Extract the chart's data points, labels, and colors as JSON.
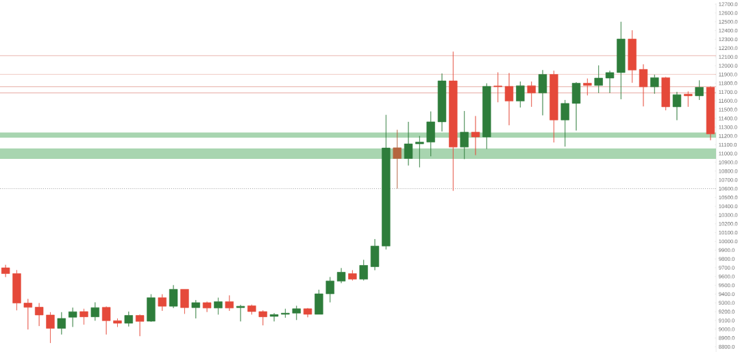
{
  "chart_data": {
    "type": "candlestick",
    "categories": [
      null,
      null,
      null,
      null,
      null,
      null,
      null,
      null,
      null,
      null,
      null,
      null,
      null,
      null,
      null,
      null,
      null,
      null,
      null,
      null,
      null,
      null,
      null,
      null,
      null,
      null,
      null,
      null,
      null,
      null,
      null,
      null,
      null,
      null,
      null,
      null,
      null,
      null,
      null,
      null,
      null,
      null,
      null,
      null,
      null,
      null,
      null,
      null,
      null,
      null,
      null,
      null,
      null,
      null,
      null,
      null,
      null,
      null,
      null,
      null,
      null,
      null,
      null,
      null
    ],
    "ohlc": [
      [
        9699,
        9733,
        9594,
        9633
      ],
      [
        9633,
        9673,
        9215,
        9298
      ],
      [
        9298,
        9345,
        8997,
        9249
      ],
      [
        9251,
        9298,
        9036,
        9162
      ],
      [
        9162,
        9194,
        8843,
        9010
      ],
      [
        9010,
        9194,
        8940,
        9123
      ],
      [
        9136,
        9246,
        9026,
        9199
      ],
      [
        9201,
        9233,
        9052,
        9141
      ],
      [
        9141,
        9306,
        9097,
        9246
      ],
      [
        9249,
        9259,
        8940,
        9097
      ],
      [
        9097,
        9123,
        9026,
        9068
      ],
      [
        9068,
        9201,
        9031,
        9157
      ],
      [
        9157,
        9167,
        8921,
        9089
      ],
      [
        9091,
        9398,
        9084,
        9359
      ],
      [
        9359,
        9398,
        9209,
        9262
      ],
      [
        9262,
        9502,
        9241,
        9455
      ],
      [
        9455,
        9455,
        9175,
        9246
      ],
      [
        9246,
        9332,
        9123,
        9303
      ],
      [
        9303,
        9314,
        9196,
        9241
      ],
      [
        9241,
        9359,
        9167,
        9314
      ],
      [
        9314,
        9385,
        9209,
        9241
      ],
      [
        9246,
        9277,
        9089,
        9262
      ],
      [
        9267,
        9280,
        9167,
        9201
      ],
      [
        9201,
        9215,
        9044,
        9141
      ],
      [
        9146,
        9183,
        9089,
        9167
      ],
      [
        9170,
        9233,
        9131,
        9183
      ],
      [
        9183,
        9267,
        9105,
        9233
      ],
      [
        9233,
        9241,
        9136,
        9170
      ],
      [
        9170,
        9450,
        9170,
        9403
      ],
      [
        9403,
        9594,
        9306,
        9550
      ],
      [
        9547,
        9696,
        9525,
        9649
      ],
      [
        9633,
        9672,
        9555,
        9570
      ],
      [
        9570,
        9790,
        9555,
        9727
      ],
      [
        9712,
        10026,
        9672,
        9947
      ],
      [
        9947,
        11440,
        9908,
        11063
      ],
      [
        11065,
        11270,
        10602,
        10943
      ],
      [
        10943,
        11361,
        10864,
        11110
      ],
      [
        11110,
        11199,
        10843,
        11131
      ],
      [
        11131,
        11479,
        10969,
        11361
      ],
      [
        11361,
        11911,
        11251,
        11827
      ],
      [
        11827,
        12160,
        10576,
        11073
      ],
      [
        11073,
        11484,
        10937,
        11244
      ],
      [
        11244,
        11427,
        10982,
        11189
      ],
      [
        11189,
        11799,
        11052,
        11765
      ],
      [
        11770,
        11924,
        11584,
        11760
      ],
      [
        11765,
        11916,
        11322,
        11597
      ],
      [
        11597,
        11820,
        11524,
        11772
      ],
      [
        11772,
        11820,
        11532,
        11689
      ],
      [
        11689,
        11950,
        11435,
        11901
      ],
      [
        11901,
        11943,
        11126,
        11382
      ],
      [
        11382,
        11610,
        11079,
        11571
      ],
      [
        11571,
        11812,
        11262,
        11801
      ],
      [
        11801,
        11854,
        11662,
        11775
      ],
      [
        11775,
        12003,
        11689,
        11859
      ],
      [
        11859,
        11943,
        11689,
        11922
      ],
      [
        11922,
        12500,
        11618,
        12304
      ],
      [
        12304,
        12403,
        11806,
        11950
      ],
      [
        11958,
        12016,
        11537,
        11759
      ],
      [
        11759,
        11898,
        11681,
        11864
      ],
      [
        11864,
        11872,
        11492,
        11532
      ],
      [
        11532,
        11702,
        11380,
        11670
      ],
      [
        11675,
        11707,
        11532,
        11657
      ],
      [
        11657,
        11833,
        11610,
        11754
      ],
      [
        11754,
        11765,
        11152,
        11223
      ]
    ],
    "colors": [
      "#e5493a",
      "#e5493a",
      "#e5493a",
      "#e5493a",
      "#e5493a",
      "#2e7d3b",
      "#2e7d3b",
      "#e5493a",
      "#2e7d3b",
      "#e5493a",
      "#e5493a",
      "#2e7d3b",
      "#e5493a",
      "#2e7d3b",
      "#e5493a",
      "#2e7d3b",
      "#e5493a",
      "#2e7d3b",
      "#e5493a",
      "#2e7d3b",
      "#e5493a",
      "#2e7d3b",
      "#e5493a",
      "#e5493a",
      "#2e7d3b",
      "#2e7d3b",
      "#2e7d3b",
      "#e5493a",
      "#2e7d3b",
      "#2e7d3b",
      "#2e7d3b",
      "#e5493a",
      "#2e7d3b",
      "#2e7d3b",
      "#2e7d3b",
      "#b5653f",
      "#2e7d3b",
      "#2e7d3b",
      "#2e7d3b",
      "#2e7d3b",
      "#e5493a",
      "#2e7d3b",
      "#e5493a",
      "#2e7d3b",
      "#e5493a",
      "#e5493a",
      "#2e7d3b",
      "#e5493a",
      "#2e7d3b",
      "#e5493a",
      "#2e7d3b",
      "#2e7d3b",
      "#e5493a",
      "#2e7d3b",
      "#2e7d3b",
      "#2e7d3b",
      "#e5493a",
      "#e5493a",
      "#2e7d3b",
      "#e5493a",
      "#2e7d3b",
      "#e5493a",
      "#2e7d3b",
      "#e5493a"
    ],
    "ylim": [
      8740,
      12710
    ],
    "yticks": [
      {
        "value": 8800,
        "label": "8800.0"
      },
      {
        "value": 8900,
        "label": "8900.0"
      },
      {
        "value": 9000,
        "label": "9000.0"
      },
      {
        "value": 9100,
        "label": "9100.0"
      },
      {
        "value": 9200,
        "label": "9200.0"
      },
      {
        "value": 9300,
        "label": "9300.0"
      },
      {
        "value": 9400,
        "label": "9400.0"
      },
      {
        "value": 9500,
        "label": "9500.0"
      },
      {
        "value": 9600,
        "label": "9600.0"
      },
      {
        "value": 9700,
        "label": "9700.0"
      },
      {
        "value": 9800,
        "label": "9800.0"
      },
      {
        "value": 9900,
        "label": "9900.0"
      },
      {
        "value": 10000,
        "label": "10000.0"
      },
      {
        "value": 10100,
        "label": "10100.0"
      },
      {
        "value": 10200,
        "label": "10200.0"
      },
      {
        "value": 10300,
        "label": "10300.0"
      },
      {
        "value": 10400,
        "label": "10400.0"
      },
      {
        "value": 10500,
        "label": "10500.0"
      },
      {
        "value": 10600,
        "label": "10600.0"
      },
      {
        "value": 10700,
        "label": "10700.0"
      },
      {
        "value": 10800,
        "label": "10800.0"
      },
      {
        "value": 10900,
        "label": "10900.0"
      },
      {
        "value": 11000,
        "label": "11000.0"
      },
      {
        "value": 11100,
        "label": "11100.0"
      },
      {
        "value": 11200,
        "label": "11200.0"
      },
      {
        "value": 11300,
        "label": "11300.0"
      },
      {
        "value": 11400,
        "label": "11400.0"
      },
      {
        "value": 11500,
        "label": "11500.0"
      },
      {
        "value": 11600,
        "label": "11600.0"
      },
      {
        "value": 11700,
        "label": "11700.0"
      },
      {
        "value": 11800,
        "label": "11800.0"
      },
      {
        "value": 11900,
        "label": "11900.0"
      },
      {
        "value": 12000,
        "label": "12000.0"
      },
      {
        "value": 12100,
        "label": "12100.0"
      },
      {
        "value": 12200,
        "label": "12200.0"
      },
      {
        "value": 12300,
        "label": "12300.0"
      },
      {
        "value": 12400,
        "label": "12400.0"
      },
      {
        "value": 12500,
        "label": "12500.0"
      },
      {
        "value": 12600,
        "label": "12600.0"
      },
      {
        "value": 12700,
        "label": "12700.0"
      }
    ],
    "ref_lines": [
      {
        "axis": "y",
        "value": 10600,
        "color": "#777777",
        "line_style": "dotted"
      },
      {
        "axis": "y",
        "value": 12115,
        "color": "#e0968c",
        "line_style": "solid"
      },
      {
        "axis": "y",
        "value": 11900,
        "color": "#e0968c",
        "line_style": "solid"
      },
      {
        "axis": "y",
        "value": 11760,
        "color": "#e0968c",
        "line_style": "solid"
      },
      {
        "axis": "y",
        "value": 11690,
        "color": "#e0968c",
        "line_style": "solid"
      }
    ],
    "bands": [
      {
        "axis": "y",
        "from": 10940,
        "to": 11060,
        "color": "#a8d5b0"
      },
      {
        "axis": "y",
        "from": 11180,
        "to": 11240,
        "color": "#a8d5b0"
      }
    ]
  }
}
